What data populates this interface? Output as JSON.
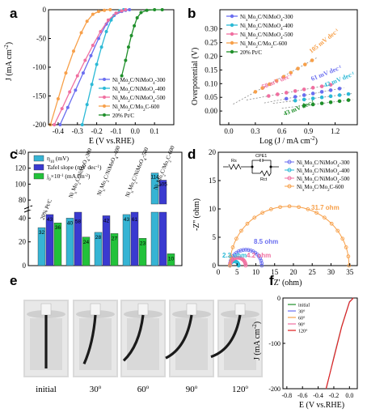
{
  "panels": {
    "a": "a",
    "b": "b",
    "c": "c",
    "d": "d",
    "e": "e",
    "f": "f"
  },
  "colors": {
    "s300": "#6a6ef0",
    "s400": "#2bb9d6",
    "s500": "#f06fa0",
    "s600": "#f7a04a",
    "ptc": "#1f8f2a",
    "eta": "#36b4d4",
    "tafel": "#3a3ad0",
    "j0": "#22c23a"
  },
  "chart_data": [
    {
      "id": "a",
      "type": "line",
      "xlabel": "E (V vs.RHE)",
      "ylabel": "J (mA cm",
      "ylabel_sup": "-2",
      "ylabel_end": ")",
      "xlim": [
        -0.45,
        0.2
      ],
      "ylim": [
        -200,
        0
      ],
      "xticks": [
        "-0.4",
        "-0.3",
        "-0.2",
        "-0.1",
        "0.0",
        "0.1"
      ],
      "xtick_values": [
        -0.4,
        -0.3,
        -0.2,
        -0.1,
        0.0,
        0.1
      ],
      "yticks": [
        "0",
        "-50",
        "-100",
        "-150",
        "-200"
      ],
      "ytick_values": [
        0,
        -50,
        -100,
        -150,
        -200
      ],
      "legend": [
        "Ni",
        "Mo",
        "C/NiMoO",
        "-300",
        "-400",
        "-500",
        "C/Mo",
        "C-600",
        "20% Pt/C"
      ],
      "series": [
        {
          "name": "Ni₁Mo₂C/NiMoO₄-300",
          "color": "#6a6ef0",
          "x": [
            -0.39,
            -0.35,
            -0.31,
            -0.27,
            -0.23,
            -0.19,
            -0.15,
            -0.11,
            -0.07,
            -0.05,
            -0.03
          ],
          "y": [
            -200,
            -170,
            -140,
            -110,
            -80,
            -50,
            -25,
            -10,
            -3,
            -1,
            0
          ]
        },
        {
          "name": "Ni₁Mo₂C/NiMoO₄-400",
          "color": "#2bb9d6",
          "x": [
            -0.275,
            -0.25,
            -0.225,
            -0.2,
            -0.175,
            -0.15,
            -0.125,
            -0.1,
            -0.08,
            -0.06
          ],
          "y": [
            -200,
            -165,
            -130,
            -95,
            -65,
            -38,
            -18,
            -6,
            -2,
            0
          ]
        },
        {
          "name": "Ni₁Mo₂C/NiMoO₄-500",
          "color": "#f06fa0",
          "x": [
            -0.42,
            -0.38,
            -0.34,
            -0.3,
            -0.26,
            -0.22,
            -0.18,
            -0.14,
            -0.1,
            -0.07,
            -0.05
          ],
          "y": [
            -200,
            -172,
            -143,
            -115,
            -88,
            -62,
            -38,
            -18,
            -6,
            -2,
            0
          ]
        },
        {
          "name": "Ni₁Mo₂C/Mo₂C-600",
          "color": "#f7a04a",
          "x": [
            -0.44,
            -0.4,
            -0.36,
            -0.32,
            -0.28,
            -0.25,
            -0.22,
            -0.19,
            -0.16,
            -0.13
          ],
          "y": [
            -200,
            -155,
            -110,
            -72,
            -40,
            -20,
            -8,
            -3,
            -1,
            0
          ]
        },
        {
          "name": "20% Pt/C",
          "color": "#1f8f2a",
          "x": [
            -0.07,
            -0.05,
            -0.035,
            -0.02,
            -0.005,
            0.01,
            0.03,
            0.06,
            0.1,
            0.14
          ],
          "y": [
            -115,
            -88,
            -65,
            -45,
            -28,
            -14,
            -5,
            -1,
            0,
            0
          ]
        }
      ]
    },
    {
      "id": "b",
      "type": "scatter",
      "xlabel": "Log (J / mA cm",
      "xlabel_sup": "-2",
      "xlabel_end": ")",
      "ylabel": "Overpotential (V)",
      "xlim": [
        -0.1,
        1.45
      ],
      "ylim": [
        -0.05,
        0.37
      ],
      "xticks": [
        "0.0",
        "0.3",
        "0.6",
        "0.9",
        "1.2"
      ],
      "xtick_values": [
        0.0,
        0.3,
        0.6,
        0.9,
        1.2
      ],
      "yticks": [
        "0.00",
        "0.05",
        "0.10",
        "0.15",
        "0.20",
        "0.25",
        "0.30"
      ],
      "ytick_values": [
        0.0,
        0.05,
        0.1,
        0.15,
        0.2,
        0.25,
        0.3
      ],
      "annotations": [
        "105 mV dec",
        "58 mV dec",
        "61 mV dec",
        "42 mV dec",
        "43 mV dec"
      ],
      "series": [
        {
          "name": "Ni₁Mo₂C/NiMoO₄-300",
          "color": "#6a6ef0",
          "x": [
            0.65,
            0.75,
            0.85,
            0.95,
            1.05,
            1.15,
            1.25
          ],
          "y": [
            0.045,
            0.052,
            0.058,
            0.064,
            0.07,
            0.076,
            0.082
          ]
        },
        {
          "name": "Ni₁Mo₂C/NiMoO₄-400",
          "color": "#2bb9d6",
          "x": [
            0.75,
            0.85,
            0.95,
            1.05,
            1.15,
            1.25,
            1.35
          ],
          "y": [
            0.038,
            0.042,
            0.046,
            0.05,
            0.054,
            0.058,
            0.062
          ]
        },
        {
          "name": "Ni₁Mo₂C/NiMoO₄-500",
          "color": "#f06fa0",
          "x": [
            0.45,
            0.55,
            0.65,
            0.75,
            0.85,
            0.95,
            1.05,
            1.15
          ],
          "y": [
            0.055,
            0.061,
            0.067,
            0.073,
            0.079,
            0.085,
            0.09,
            0.096
          ]
        },
        {
          "name": "Ni₁Mo₂C/Mo₂C-600",
          "color": "#f7a04a",
          "x": [
            0.3,
            0.38,
            0.46,
            0.54,
            0.62,
            0.7,
            0.78,
            0.86,
            0.94
          ],
          "y": [
            0.07,
            0.084,
            0.098,
            0.11,
            0.125,
            0.14,
            0.155,
            0.17,
            0.185
          ]
        },
        {
          "name": "20% Pt/C",
          "color": "#1f8f2a",
          "x": [
            0.85,
            0.95,
            1.05,
            1.15,
            1.25,
            1.35
          ],
          "y": [
            0.02,
            0.024,
            0.028,
            0.032,
            0.036,
            0.04
          ]
        }
      ]
    },
    {
      "id": "c",
      "type": "bar",
      "ylabel_top": "140",
      "yticks": [
        "140",
        "120",
        "100",
        "80",
        "40",
        "20",
        "0"
      ],
      "ytick_values": [
        140,
        120,
        100,
        80,
        40,
        20,
        0
      ],
      "ylim_lower": [
        0,
        45
      ],
      "ylim_upper": [
        75,
        140
      ],
      "categories": [
        "20% Pt/C",
        "Ni₁Mo₂C/NiMoO₄-300",
        "Ni₁Mo₂C/NiMoO₄-400",
        "Ni₁Mo₂C/NiMoO₄-500",
        "Ni₁Mo₂C/Mo₂C-600"
      ],
      "category_labels": [
        "20% Pt/C",
        "NixMo2C/NiMoO4-300",
        "NixMo2C/NiMoO4-400",
        "NixMo2C/NiMoO4-500",
        "NixMo2C/Mo2C-600"
      ],
      "series": [
        {
          "name": "η₁₀ (mV)",
          "color": "#36b4d4",
          "values": [
            32,
            40,
            28,
            43,
            114
          ]
        },
        {
          "name": "Tafel slope (mV dec⁻¹)",
          "color": "#3a3ad0",
          "values": [
            43,
            58,
            42,
            61,
            105
          ]
        },
        {
          "name": "j₀×10⁻¹ (mA cm⁻²)",
          "color": "#22c23a",
          "values": [
            36,
            24,
            27,
            23,
            10
          ]
        }
      ],
      "legend": [
        "η",
        "10",
        " (mV)",
        "Tafel slope (mV dec",
        "-1",
        ")",
        "j",
        "0",
        "×10",
        "-1",
        " (mA cm",
        "-2",
        ")"
      ]
    },
    {
      "id": "d",
      "type": "scatter",
      "xlabel": "Z' (ohm)",
      "ylabel": "-Z'' (ohm)",
      "xlim": [
        0,
        37
      ],
      "ylim": [
        0,
        20
      ],
      "xticks": [
        "0",
        "5",
        "10",
        "15",
        "20",
        "25",
        "30",
        "35"
      ],
      "xtick_values": [
        0,
        5,
        10,
        15,
        20,
        25,
        30,
        35
      ],
      "yticks": [
        "0",
        "5",
        "10",
        "15",
        "20"
      ],
      "ytick_values": [
        0,
        5,
        10,
        15,
        20
      ],
      "annotations": [
        "31.7 ohm",
        "8.5 ohm",
        "2.3 ohm",
        "4.2 ohm"
      ],
      "circuit": [
        "Rs",
        "CPE1",
        "Rct"
      ],
      "series": [
        {
          "name": "Ni₁Mo₂C/NiMoO₄-300",
          "color": "#6a6ef0",
          "r0": 3.1,
          "rct": 8.5
        },
        {
          "name": "Ni₁Mo₂C/NiMoO₄-400",
          "color": "#2bb9d6",
          "r0": 3.1,
          "rct": 2.3
        },
        {
          "name": "Ni₁Mo₂C/NiMoO₄-500",
          "color": "#f06fa0",
          "r0": 3.1,
          "rct": 4.2
        },
        {
          "name": "Ni₁Mo₂C/Mo₂C-600",
          "color": "#f7a04a",
          "r0": 3.1,
          "rct": 31.7
        }
      ]
    },
    {
      "id": "f",
      "type": "line",
      "xlabel": "E (V vs.RHE)",
      "ylabel": "J (mA cm",
      "ylabel_sup": "-2",
      "ylabel_end": ")",
      "xlim": [
        -0.85,
        0.1
      ],
      "ylim": [
        -200,
        0
      ],
      "xticks": [
        "-0.8",
        "-0.6",
        "-0.4",
        "-0.2",
        "0.0"
      ],
      "xtick_values": [
        -0.8,
        -0.6,
        -0.4,
        -0.2,
        0.0
      ],
      "yticks": [
        "0",
        "-100",
        "-200"
      ],
      "ytick_values": [
        0,
        -100,
        -200
      ],
      "series": [
        {
          "name": "initial",
          "color": "#1f8f2a",
          "x": [
            -0.295,
            -0.2,
            -0.1,
            0.0,
            0.05
          ],
          "y": [
            -200,
            -130,
            -62,
            -8,
            0
          ]
        },
        {
          "name": "30°",
          "color": "#6a6ef0",
          "x": [
            -0.296,
            -0.2,
            -0.1,
            0.0,
            0.05
          ],
          "y": [
            -200,
            -131,
            -63,
            -8,
            0
          ]
        },
        {
          "name": "60°",
          "color": "#f7a04a",
          "x": [
            -0.297,
            -0.2,
            -0.1,
            0.0,
            0.05
          ],
          "y": [
            -200,
            -132,
            -63,
            -9,
            0
          ]
        },
        {
          "name": "90°",
          "color": "#f06fa0",
          "x": [
            -0.298,
            -0.2,
            -0.1,
            0.0,
            0.05
          ],
          "y": [
            -200,
            -132,
            -64,
            -9,
            0
          ]
        },
        {
          "name": "120°",
          "color": "#e01c1c",
          "x": [
            -0.3,
            -0.2,
            -0.1,
            0.0,
            0.05
          ],
          "y": [
            -200,
            -133,
            -64,
            -9,
            0
          ]
        }
      ]
    }
  ],
  "photos": {
    "labels": [
      "initial",
      "30",
      "60",
      "90",
      "120"
    ],
    "deg": "o"
  }
}
